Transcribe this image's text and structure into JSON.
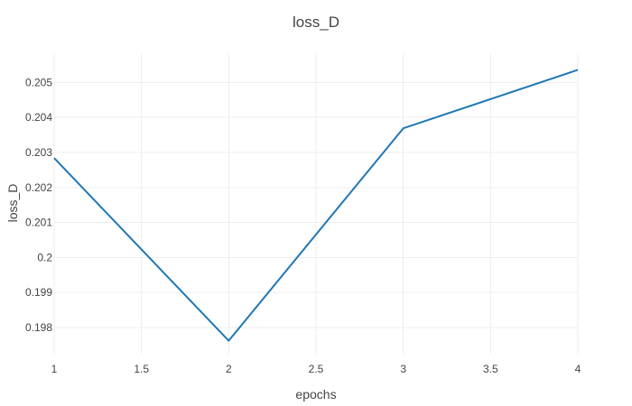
{
  "chart_data": {
    "type": "line",
    "title": "loss_D",
    "xlabel": "epochs",
    "ylabel": "loss_D",
    "x": [
      1,
      2,
      3,
      4
    ],
    "series": [
      {
        "values": [
          0.20284,
          0.19762,
          0.20369,
          0.20536
        ],
        "color": "#1f77b4"
      }
    ],
    "xlim": [
      1,
      4
    ],
    "ylim": [
      0.19725,
      0.20581
    ],
    "x_ticks": [
      1,
      1.5,
      2,
      2.5,
      3,
      3.5,
      4
    ],
    "x_tick_labels": [
      "1",
      "1.5",
      "2",
      "2.5",
      "3",
      "3.5",
      "4"
    ],
    "y_ticks": [
      0.198,
      0.199,
      0.2,
      0.201,
      0.202,
      0.203,
      0.204,
      0.205
    ],
    "y_tick_labels": [
      "0.198",
      "0.199",
      "0.2",
      "0.201",
      "0.202",
      "0.203",
      "0.204",
      "0.205"
    ],
    "grid": true,
    "legend": "none"
  }
}
